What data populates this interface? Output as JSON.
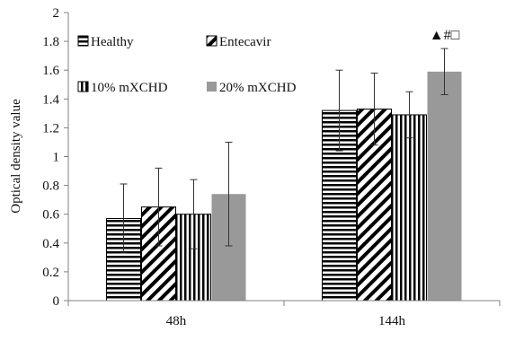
{
  "chart_data": {
    "type": "bar",
    "categories": [
      "48h",
      "144h"
    ],
    "series": [
      {
        "name": "Healthy",
        "values": [
          0.57,
          1.32
        ],
        "errors": [
          0.24,
          0.28
        ],
        "pattern": "horizontal-stripes"
      },
      {
        "name": "Entecavir",
        "values": [
          0.65,
          1.33
        ],
        "errors": [
          0.27,
          0.25
        ],
        "pattern": "diagonal-stripes"
      },
      {
        "name": "10% mXCHD",
        "values": [
          0.6,
          1.29
        ],
        "errors": [
          0.24,
          0.16
        ],
        "pattern": "vertical-stripes"
      },
      {
        "name": "20% mXCHD",
        "values": [
          0.74,
          1.59
        ],
        "errors": [
          0.36,
          0.16
        ],
        "pattern": "solid-gray"
      }
    ],
    "ylabel": "Optical density value",
    "xlabel": "",
    "ylim": [
      0,
      2
    ],
    "yticks": [
      "0",
      "0.2",
      "0.4",
      "0.6",
      "0.8",
      "1",
      "1.2",
      "1.4",
      "1.6",
      "1.8",
      "2"
    ],
    "grid": false,
    "legend_position": "top-left",
    "annotations": [
      {
        "text": "▲#□",
        "category": "144h",
        "series": "20% mXCHD"
      }
    ],
    "colors": {
      "bar_stroke": "#000000",
      "solid_fill": "#999999",
      "axis": "#808080"
    }
  }
}
